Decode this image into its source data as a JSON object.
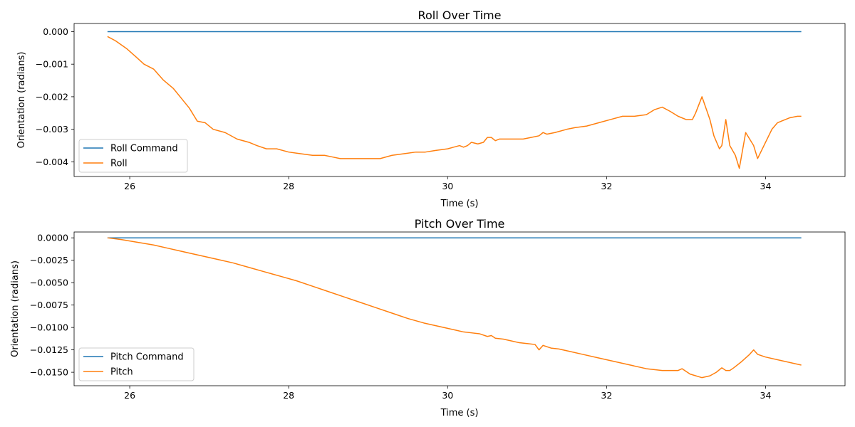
{
  "chart_data": [
    {
      "type": "line",
      "title": "Roll Over Time",
      "xlabel": "Time (s)",
      "ylabel": "Orientation (radians)",
      "xlim": [
        25.3,
        35.0
      ],
      "ylim": [
        -0.00445,
        0.00025
      ],
      "xticks": [
        26,
        28,
        30,
        32,
        34
      ],
      "xtick_labels": [
        "26",
        "28",
        "30",
        "32",
        "34"
      ],
      "yticks": [
        0.0,
        -0.001,
        -0.002,
        -0.003,
        -0.004
      ],
      "ytick_labels": [
        "0.000",
        "−0.001",
        "−0.002",
        "−0.003",
        "−0.004"
      ],
      "grid": false,
      "legend": "lower-left",
      "series": [
        {
          "name": "Roll Command",
          "color": "#1f77b4",
          "x": [
            25.72,
            34.45
          ],
          "y": [
            0.0,
            0.0
          ]
        },
        {
          "name": "Roll",
          "color": "#ff7f0e",
          "x": [
            25.72,
            25.82,
            25.96,
            26.08,
            26.18,
            26.3,
            26.42,
            26.55,
            26.65,
            26.75,
            26.85,
            26.95,
            27.05,
            27.2,
            27.35,
            27.5,
            27.6,
            27.72,
            27.85,
            28.0,
            28.15,
            28.3,
            28.45,
            28.55,
            28.65,
            28.75,
            28.85,
            28.95,
            29.05,
            29.15,
            29.3,
            29.45,
            29.6,
            29.72,
            29.85,
            30.0,
            30.15,
            30.2,
            30.25,
            30.3,
            30.38,
            30.45,
            30.5,
            30.55,
            30.6,
            30.65,
            30.75,
            30.85,
            30.95,
            31.05,
            31.15,
            31.2,
            31.25,
            31.35,
            31.5,
            31.6,
            31.75,
            31.9,
            32.05,
            32.2,
            32.35,
            32.5,
            32.6,
            32.7,
            32.8,
            32.9,
            33.0,
            33.08,
            33.12,
            33.2,
            33.3,
            33.35,
            33.42,
            33.45,
            33.5,
            33.55,
            33.62,
            33.67,
            33.75,
            33.85,
            33.9,
            34.0,
            34.08,
            34.15,
            34.2,
            34.3,
            34.4,
            34.45
          ],
          "y": [
            -0.00015,
            -0.00028,
            -0.00052,
            -0.00078,
            -0.001,
            -0.00115,
            -0.00148,
            -0.00175,
            -0.00205,
            -0.00235,
            -0.00275,
            -0.0028,
            -0.003,
            -0.0031,
            -0.0033,
            -0.0034,
            -0.0035,
            -0.0036,
            -0.0036,
            -0.0037,
            -0.00375,
            -0.0038,
            -0.0038,
            -0.00385,
            -0.0039,
            -0.0039,
            -0.0039,
            -0.0039,
            -0.0039,
            -0.0039,
            -0.0038,
            -0.00375,
            -0.0037,
            -0.0037,
            -0.00365,
            -0.0036,
            -0.0035,
            -0.00355,
            -0.0035,
            -0.0034,
            -0.00345,
            -0.0034,
            -0.00325,
            -0.00325,
            -0.00335,
            -0.0033,
            -0.0033,
            -0.0033,
            -0.0033,
            -0.00325,
            -0.0032,
            -0.0031,
            -0.00315,
            -0.0031,
            -0.003,
            -0.00295,
            -0.0029,
            -0.0028,
            -0.0027,
            -0.0026,
            -0.0026,
            -0.00255,
            -0.0024,
            -0.00232,
            -0.00245,
            -0.0026,
            -0.0027,
            -0.0027,
            -0.0025,
            -0.002,
            -0.0027,
            -0.0032,
            -0.0036,
            -0.0035,
            -0.0027,
            -0.0035,
            -0.0038,
            -0.0042,
            -0.0031,
            -0.0035,
            -0.0039,
            -0.0034,
            -0.003,
            -0.0028,
            -0.00275,
            -0.00265,
            -0.0026,
            -0.0026
          ]
        }
      ]
    },
    {
      "type": "line",
      "title": "Pitch Over Time",
      "xlabel": "Time (s)",
      "ylabel": "Orientation (radians)",
      "xlim": [
        25.3,
        35.0
      ],
      "ylim": [
        -0.0165,
        0.00065
      ],
      "xticks": [
        26,
        28,
        30,
        32,
        34
      ],
      "xtick_labels": [
        "26",
        "28",
        "30",
        "32",
        "34"
      ],
      "yticks": [
        0.0,
        -0.0025,
        -0.005,
        -0.0075,
        -0.01,
        -0.0125,
        -0.015
      ],
      "ytick_labels": [
        "0.0000",
        "−0.0025",
        "−0.0050",
        "−0.0075",
        "−0.0100",
        "−0.0125",
        "−0.0150"
      ],
      "grid": false,
      "legend": "lower-left",
      "series": [
        {
          "name": "Pitch Command",
          "color": "#1f77b4",
          "x": [
            25.72,
            34.45
          ],
          "y": [
            0.0,
            0.0
          ]
        },
        {
          "name": "Pitch",
          "color": "#ff7f0e",
          "x": [
            25.72,
            25.9,
            26.1,
            26.3,
            26.5,
            26.7,
            26.9,
            27.1,
            27.3,
            27.5,
            27.7,
            27.9,
            28.1,
            28.3,
            28.5,
            28.7,
            28.9,
            29.1,
            29.3,
            29.5,
            29.7,
            29.9,
            30.0,
            30.1,
            30.2,
            30.3,
            30.4,
            30.5,
            30.55,
            30.6,
            30.7,
            30.8,
            30.9,
            31.0,
            31.1,
            31.15,
            31.2,
            31.3,
            31.4,
            31.5,
            31.7,
            31.9,
            32.1,
            32.3,
            32.5,
            32.7,
            32.8,
            32.9,
            32.95,
            33.05,
            33.2,
            33.3,
            33.38,
            33.45,
            33.5,
            33.55,
            33.6,
            33.7,
            33.8,
            33.85,
            33.9,
            34.0,
            34.2,
            34.45
          ],
          "y": [
            0.0,
            -0.0002,
            -0.0005,
            -0.0008,
            -0.0012,
            -0.0016,
            -0.002,
            -0.0024,
            -0.0028,
            -0.0033,
            -0.0038,
            -0.0043,
            -0.0048,
            -0.0054,
            -0.006,
            -0.0066,
            -0.0072,
            -0.0078,
            -0.0084,
            -0.009,
            -0.0095,
            -0.0099,
            -0.0101,
            -0.0103,
            -0.0105,
            -0.0106,
            -0.0107,
            -0.011,
            -0.0109,
            -0.0112,
            -0.0113,
            -0.0115,
            -0.0117,
            -0.0118,
            -0.0119,
            -0.0125,
            -0.012,
            -0.0123,
            -0.0124,
            -0.0126,
            -0.013,
            -0.0134,
            -0.0138,
            -0.0142,
            -0.0146,
            -0.0148,
            -0.0148,
            -0.0148,
            -0.0146,
            -0.0152,
            -0.0156,
            -0.0154,
            -0.015,
            -0.0145,
            -0.0148,
            -0.0148,
            -0.0145,
            -0.0138,
            -0.013,
            -0.0125,
            -0.013,
            -0.0133,
            -0.0137,
            -0.0142
          ]
        }
      ]
    }
  ]
}
